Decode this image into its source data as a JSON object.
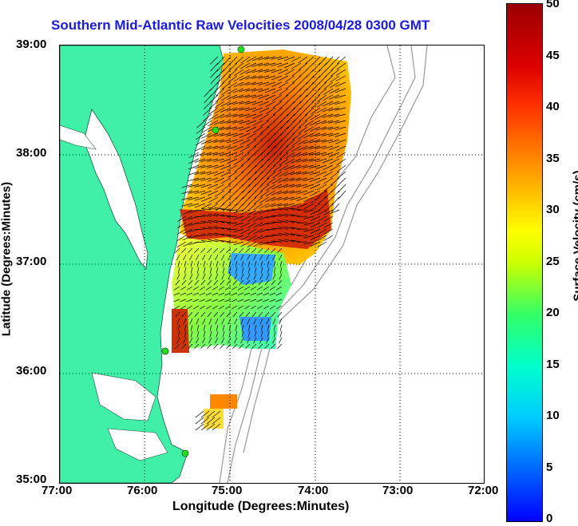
{
  "title": "Southern Mid-Atlantic Raw Velocities 2008/04/28 0300 GMT",
  "xaxis": {
    "label": "Longitude (Degrees:Minutes)",
    "ticks": [
      "77:00",
      "76:00",
      "75:00",
      "74:00",
      "73:00",
      "72:00"
    ]
  },
  "yaxis": {
    "label": "Latitude (Degrees:Minutes)",
    "ticks": [
      "39:00",
      "38:00",
      "37:00",
      "36:00",
      "35:00"
    ]
  },
  "colorbar": {
    "label": "Surface Velocity (cm/s)",
    "ticks": [
      "50",
      "45",
      "40",
      "35",
      "30",
      "25",
      "20",
      "15",
      "10",
      "5",
      "0"
    ]
  },
  "colors": {
    "land": "#40f0a8",
    "water": "#ffffff",
    "title": "#1a1ae0",
    "stations": "#22dd22"
  }
}
